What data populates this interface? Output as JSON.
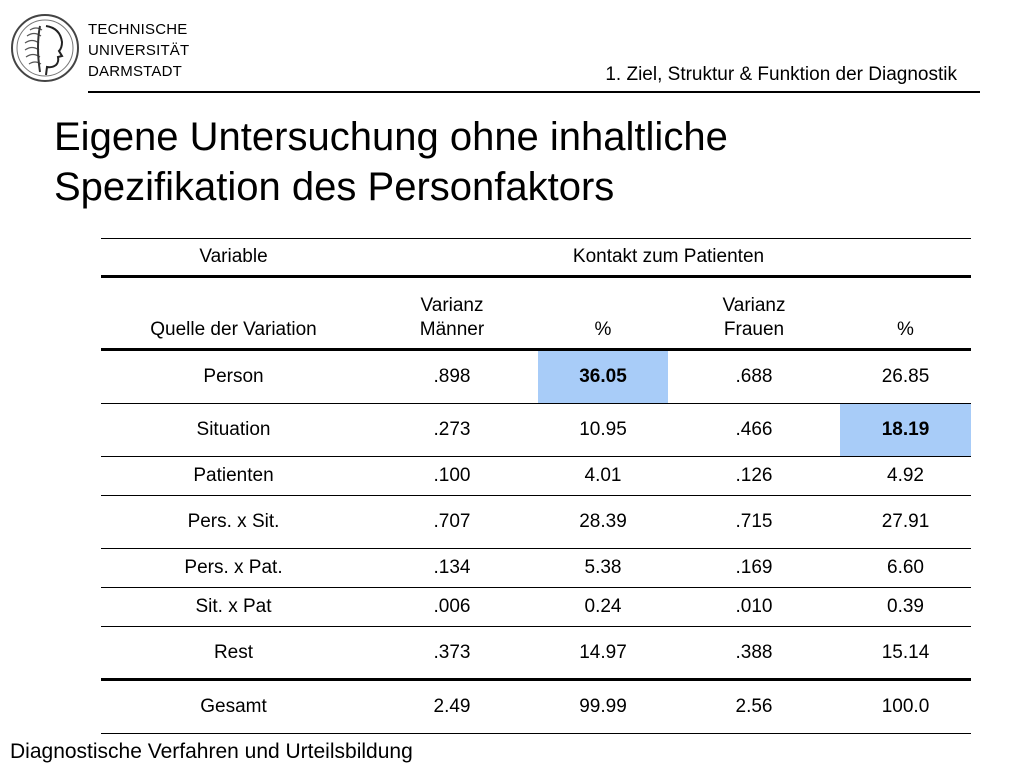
{
  "header": {
    "university_lines": [
      "TECHNISCHE",
      "UNIVERSITÄT",
      "DARMSTADT"
    ],
    "section": "1. Ziel, Struktur & Funktion der Diagnostik"
  },
  "title_lines": [
    "Eigene Untersuchung ohne inhaltliche",
    "Spezifikation des Personfaktors"
  ],
  "table": {
    "variable_label": "Variable",
    "contact_label": "Kontakt zum Patienten",
    "source_label": "Quelle der Variation",
    "col_varianz_maenner": [
      "Varianz",
      "Männer"
    ],
    "col_pct_1": "%",
    "col_varianz_frauen": [
      "Varianz",
      "Frauen"
    ],
    "col_pct_2": "%",
    "rows": [
      [
        "Person",
        ".898",
        "36.05",
        ".688",
        "26.85"
      ],
      [
        "Situation",
        ".273",
        "10.95",
        ".466",
        "18.19"
      ],
      [
        "Patienten",
        ".100",
        "4.01",
        ".126",
        "4.92"
      ],
      [
        "Pers. x Sit.",
        ".707",
        "28.39",
        ".715",
        "27.91"
      ],
      [
        "Pers. x Pat.",
        ".134",
        "5.38",
        ".169",
        "6.60"
      ],
      [
        "Sit. x Pat",
        ".006",
        "0.24",
        ".010",
        "0.39"
      ],
      [
        "Rest",
        ".373",
        "14.97",
        ".388",
        "15.14"
      ],
      [
        "Gesamt",
        "2.49",
        "99.99",
        "2.56",
        "100.0"
      ]
    ],
    "highlight_color": "#a8ccf8"
  },
  "footer": "Diagnostische Verfahren und Urteilsbildung"
}
